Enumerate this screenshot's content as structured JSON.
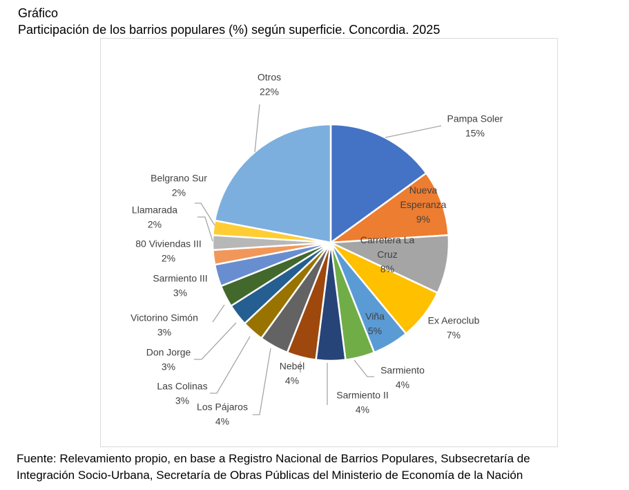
{
  "header": {
    "label": "Gráfico",
    "title": "Participación de los barrios populares (%) según superficie. Concordia. 2025"
  },
  "footer": {
    "line1": "Fuente: Relevamiento propio, en base a Registro Nacional de Barrios Populares, Subsecretaría de",
    "line2": "Integración Socio-Urbana, Secretaría de Obras Públicas del Ministerio de Economía de la Nación"
  },
  "chart_data": {
    "type": "pie",
    "title": "Participación de los barrios populares (%) según superficie. Concordia. 2025",
    "unit": "%",
    "start": "12 o'clock, clockwise",
    "slices": [
      {
        "name": "Pampa Soler",
        "value": 15,
        "label_lines": [
          "Pampa Soler",
          "15%"
        ],
        "color": "#4472C4"
      },
      {
        "name": "Nueva Esperanza",
        "value": 9,
        "label_lines": [
          "Nueva",
          "Esperanza",
          "9%"
        ],
        "color": "#ED7D31"
      },
      {
        "name": "Carretera La Cruz",
        "value": 8,
        "label_lines": [
          "Carretera La",
          "Cruz",
          "8%"
        ],
        "color": "#A5A5A5"
      },
      {
        "name": "Ex Aeroclub",
        "value": 7,
        "label_lines": [
          "Ex Aeroclub",
          "7%"
        ],
        "color": "#FFC000"
      },
      {
        "name": "Viña",
        "value": 5,
        "label_lines": [
          "Viña",
          "5%"
        ],
        "color": "#5B9BD5"
      },
      {
        "name": "Sarmiento",
        "value": 4,
        "label_lines": [
          "Sarmiento",
          "4%"
        ],
        "color": "#70AD47"
      },
      {
        "name": "Sarmiento II",
        "value": 4,
        "label_lines": [
          "Sarmiento II",
          "4%"
        ],
        "color": "#264478"
      },
      {
        "name": "Nebel",
        "value": 4,
        "label_lines": [
          "Nebel",
          "4%"
        ],
        "color": "#9E480E"
      },
      {
        "name": "Los Pájaros",
        "value": 4,
        "label_lines": [
          "Los Pájaros",
          "4%"
        ],
        "color": "#636363"
      },
      {
        "name": "Las Colinas",
        "value": 3,
        "label_lines": [
          "Las Colinas",
          "3%"
        ],
        "color": "#997300"
      },
      {
        "name": "Don Jorge",
        "value": 3,
        "label_lines": [
          "Don Jorge",
          "3%"
        ],
        "color": "#255E91"
      },
      {
        "name": "Victorino Simón",
        "value": 3,
        "label_lines": [
          "Victorino Simón",
          "3%"
        ],
        "color": "#43682B"
      },
      {
        "name": "Sarmiento III",
        "value": 3,
        "label_lines": [
          "Sarmiento III",
          "3%"
        ],
        "color": "#698ED0"
      },
      {
        "name": "80 Viviendas III",
        "value": 2,
        "label_lines": [
          "80 Viviendas III",
          "2%"
        ],
        "color": "#F1975A"
      },
      {
        "name": "Llamarada",
        "value": 2,
        "label_lines": [
          "Llamarada",
          "2%"
        ],
        "color": "#B7B7B7"
      },
      {
        "name": "Belgrano Sur",
        "value": 2,
        "label_lines": [
          "Belgrano Sur",
          "2%"
        ],
        "color": "#FFCD33"
      },
      {
        "name": "Otros",
        "value": 22,
        "label_lines": [
          "Otros",
          "22%"
        ],
        "color": "#7CAFDD"
      }
    ]
  }
}
